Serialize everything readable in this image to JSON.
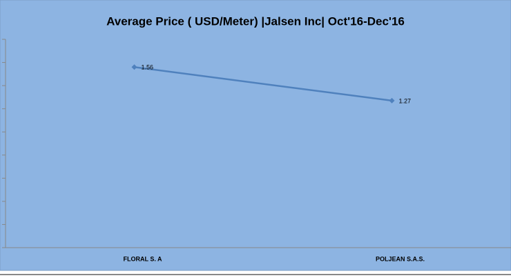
{
  "chart_data": {
    "type": "line",
    "title": "Average Price ( USD/Meter) |Jalsen Inc| Oct'16-Dec'16",
    "categories": [
      "FLORAL S. A",
      "POLJEAN S.A.S."
    ],
    "series": [
      {
        "name": "Average Price",
        "color": "#4f81bd",
        "values": [
          1.56,
          1.27
        ]
      }
    ],
    "ylim": [
      0,
      1.8
    ],
    "yticks": [
      0,
      0.2,
      0.4,
      0.6,
      0.8,
      1,
      1.2,
      1.4,
      1.6,
      1.8
    ]
  }
}
